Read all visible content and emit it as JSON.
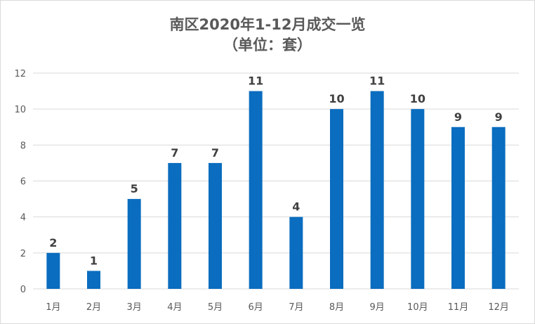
{
  "chart_data": {
    "type": "bar",
    "title": "南区2020年1-12月成交一览",
    "subtitle": "（单位：套）",
    "categories": [
      "1月",
      "2月",
      "3月",
      "4月",
      "5月",
      "6月",
      "7月",
      "8月",
      "9月",
      "10月",
      "11月",
      "12月"
    ],
    "values": [
      2,
      1,
      5,
      7,
      7,
      11,
      4,
      10,
      11,
      10,
      9,
      9
    ],
    "ylim": [
      0,
      12
    ],
    "yticks": [
      0,
      2,
      4,
      6,
      8,
      10,
      12
    ],
    "grid": true,
    "bar_color": "#0A6DBF",
    "grid_color": "#d9d9d9",
    "data_labels": true
  }
}
